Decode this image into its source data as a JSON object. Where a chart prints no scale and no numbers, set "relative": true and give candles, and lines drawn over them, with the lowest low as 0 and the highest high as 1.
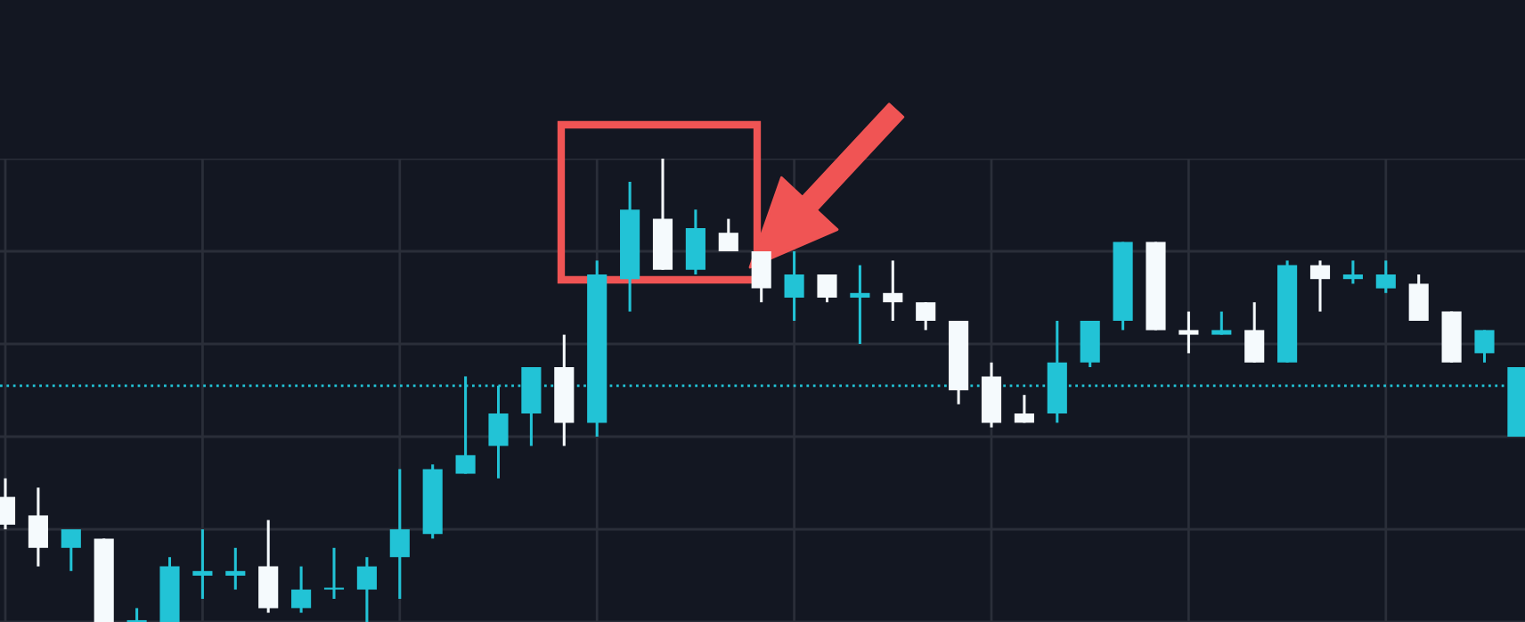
{
  "chart_data": {
    "type": "candlestick",
    "relative": true,
    "grid": true,
    "categories": [
      null,
      null,
      null,
      null,
      null,
      null,
      null,
      null,
      null,
      null,
      null,
      null,
      null,
      null,
      null,
      null,
      null,
      null,
      null,
      null,
      null,
      null,
      null,
      null,
      null,
      null,
      null,
      null,
      null,
      null,
      null,
      null,
      null,
      null,
      null,
      null,
      null,
      null,
      null,
      null,
      null,
      null,
      null,
      null,
      null,
      null,
      null
    ],
    "series": [
      {
        "colors": [
          "#f5fafd",
          "#f5fafd",
          "#22c3d6",
          "#f5fafd",
          "#22c3d6",
          "#22c3d6",
          "#22c3d6",
          "#22c3d6",
          "#f5fafd",
          "#22c3d6",
          "#22c3d6",
          "#22c3d6",
          "#22c3d6",
          "#22c3d6",
          "#22c3d6",
          "#22c3d6",
          "#22c3d6",
          "#f5fafd",
          "#22c3d6",
          "#22c3d6",
          "#f5fafd",
          "#22c3d6",
          "#f5fafd",
          "#f5fafd",
          "#22c3d6",
          "#f5fafd",
          "#22c3d6",
          "#f5fafd",
          "#f5fafd",
          "#f5fafd",
          "#f5fafd",
          "#f5fafd",
          "#22c3d6",
          "#22c3d6",
          "#22c3d6",
          "#f5fafd",
          "#f5fafd",
          "#22c3d6",
          "#f5fafd",
          "#22c3d6",
          "#f5fafd",
          "#22c3d6",
          "#22c3d6",
          "#f5fafd",
          "#f5fafd",
          "#22c3d6",
          "#22c3d6"
        ],
        "ohlc": [
          [
            0.27,
            0.31,
            0.2,
            0.21
          ],
          [
            0.23,
            0.29,
            0.12,
            0.16
          ],
          [
            0.16,
            0.2,
            0.11,
            0.2
          ],
          [
            0.18,
            0.18,
            0,
            0
          ],
          [
            0,
            0.03,
            0,
            0
          ],
          [
            0,
            0.14,
            0,
            0.12
          ],
          [
            0.1,
            0.2,
            0.05,
            0.11
          ],
          [
            0.1,
            0.16,
            0.07,
            0.11
          ],
          [
            0.12,
            0.22,
            0.02,
            0.03
          ],
          [
            0.03,
            0.12,
            0.02,
            0.07
          ],
          [
            0.07,
            0.16,
            0.05,
            0.07
          ],
          [
            0.07,
            0.14,
            0,
            0.12
          ],
          [
            0.14,
            0.33,
            0.05,
            0.2
          ],
          [
            0.19,
            0.34,
            0.18,
            0.33
          ],
          [
            0.32,
            0.53,
            0.32,
            0.36
          ],
          [
            0.38,
            0.51,
            0.31,
            0.45
          ],
          [
            0.45,
            0.55,
            0.38,
            0.55
          ],
          [
            0.55,
            0.62,
            0.38,
            0.43
          ],
          [
            0.43,
            0.78,
            0.4,
            0.75
          ],
          [
            0.74,
            0.95,
            0.67,
            0.89
          ],
          [
            0.87,
            1.0,
            0.76,
            0.76
          ],
          [
            0.76,
            0.89,
            0.75,
            0.85
          ],
          [
            0.84,
            0.87,
            0.8,
            0.8
          ],
          [
            0.8,
            0.8,
            0.69,
            0.72
          ],
          [
            0.7,
            0.8,
            0.65,
            0.75
          ],
          [
            0.75,
            0.75,
            0.69,
            0.7
          ],
          [
            0.7,
            0.77,
            0.6,
            0.71
          ],
          [
            0.71,
            0.78,
            0.65,
            0.69
          ],
          [
            0.69,
            0.69,
            0.63,
            0.65
          ],
          [
            0.65,
            0.65,
            0.47,
            0.5
          ],
          [
            0.53,
            0.56,
            0.42,
            0.43
          ],
          [
            0.45,
            0.49,
            0.43,
            0.43
          ],
          [
            0.45,
            0.65,
            0.43,
            0.56
          ],
          [
            0.56,
            0.65,
            0.55,
            0.65
          ],
          [
            0.65,
            0.82,
            0.63,
            0.82
          ],
          [
            0.82,
            0.82,
            0.63,
            0.63
          ],
          [
            0.63,
            0.67,
            0.58,
            0.62
          ],
          [
            0.62,
            0.67,
            0.62,
            0.63
          ],
          [
            0.63,
            0.69,
            0.56,
            0.56
          ],
          [
            0.56,
            0.78,
            0.56,
            0.77
          ],
          [
            0.77,
            0.78,
            0.67,
            0.74
          ],
          [
            0.74,
            0.78,
            0.73,
            0.75
          ],
          [
            0.72,
            0.78,
            0.71,
            0.75
          ],
          [
            0.73,
            0.75,
            0.65,
            0.65
          ],
          [
            0.67,
            0.67,
            0.56,
            0.56
          ],
          [
            0.58,
            0.63,
            0.56,
            0.63
          ],
          [
            0.4,
            0.55,
            0.4,
            0.55
          ]
        ]
      }
    ],
    "ref_lines": [
      {
        "axis": "y",
        "value": 0.51,
        "color": "#22c3d6",
        "line_style": "dotted"
      }
    ]
  }
}
